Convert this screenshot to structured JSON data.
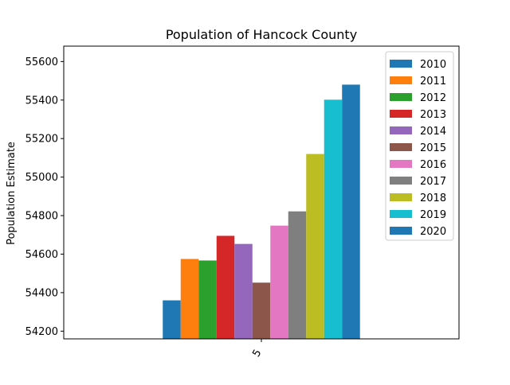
{
  "chart_data": {
    "type": "bar",
    "title": "Population of Hancock County",
    "xlabel": "",
    "ylabel": "Population Estimate",
    "categories": [
      "5"
    ],
    "ylim": [
      54160,
      55680
    ],
    "yticks": [
      54200,
      54400,
      54600,
      54800,
      55000,
      55200,
      55400,
      55600
    ],
    "grid": false,
    "legend_position": "top-right",
    "x_tick_rotation": "rotated",
    "series": [
      {
        "name": "2010",
        "values": [
          54360
        ],
        "color": "#1f77b4"
      },
      {
        "name": "2011",
        "values": [
          54575
        ],
        "color": "#ff7f0e"
      },
      {
        "name": "2012",
        "values": [
          54567
        ],
        "color": "#2ca02c"
      },
      {
        "name": "2013",
        "values": [
          54695
        ],
        "color": "#d62728"
      },
      {
        "name": "2014",
        "values": [
          54653
        ],
        "color": "#9467bd"
      },
      {
        "name": "2015",
        "values": [
          54452
        ],
        "color": "#8c564b"
      },
      {
        "name": "2016",
        "values": [
          54748
        ],
        "color": "#e377c2"
      },
      {
        "name": "2017",
        "values": [
          54822
        ],
        "color": "#7f7f7f"
      },
      {
        "name": "2018",
        "values": [
          55120
        ],
        "color": "#bcbd22"
      },
      {
        "name": "2019",
        "values": [
          55402
        ],
        "color": "#17becf"
      },
      {
        "name": "2020",
        "values": [
          55480
        ],
        "color": "#1f77b4"
      }
    ]
  }
}
